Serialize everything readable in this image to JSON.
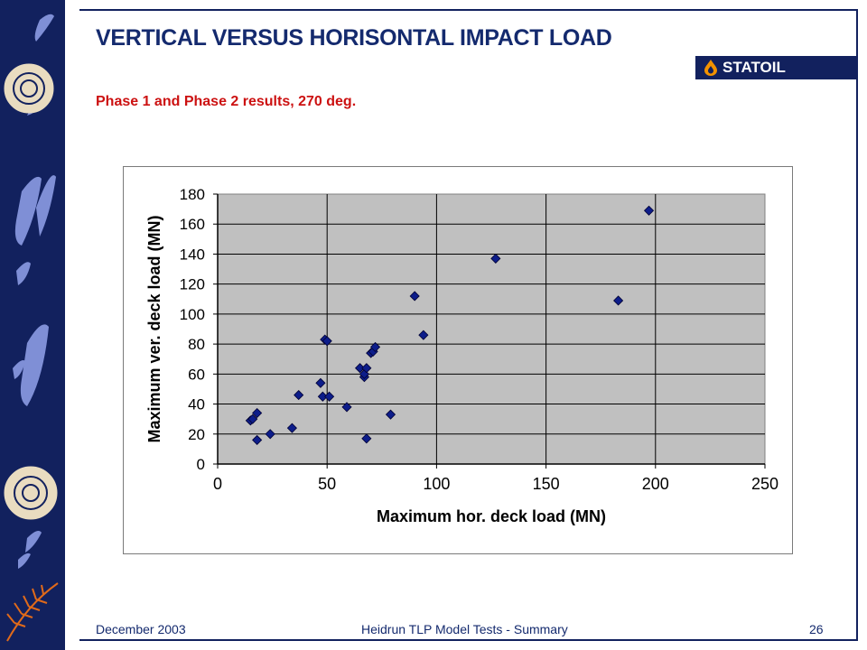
{
  "slide": {
    "title": "VERTICAL VERSUS HORISONTAL IMPACT LOAD",
    "subtitle": "Phase 1 and Phase 2 results, 270 deg.",
    "logo_text": "STATOIL",
    "footer_left": "December 2003",
    "footer_center": "Heidrun TLP Model Tests - Summary",
    "page_number": "26"
  },
  "colors": {
    "band": "#12215e",
    "title": "#142a6e",
    "subtitle": "#cc1111",
    "plot_area": "#c0c0c0",
    "marker": "#0d1d8a",
    "logo_drop": "#f39200"
  },
  "chart_data": {
    "type": "scatter",
    "xlabel": "Maximum hor. deck load (MN)",
    "ylabel": "Maximum ver. deck load  (MN)",
    "xlim": [
      0,
      250
    ],
    "ylim": [
      0,
      180
    ],
    "x_ticks": [
      0,
      50,
      100,
      150,
      200,
      250
    ],
    "y_ticks": [
      0,
      20,
      40,
      60,
      80,
      100,
      120,
      140,
      160,
      180
    ],
    "grid": "major gridlines on both axes",
    "points": [
      [
        15,
        29
      ],
      [
        16,
        30
      ],
      [
        18,
        34
      ],
      [
        18,
        16
      ],
      [
        24,
        20
      ],
      [
        34,
        24
      ],
      [
        37,
        46
      ],
      [
        47,
        54
      ],
      [
        48,
        45
      ],
      [
        49,
        83
      ],
      [
        50,
        82
      ],
      [
        51,
        45
      ],
      [
        59,
        38
      ],
      [
        65,
        64
      ],
      [
        67,
        58
      ],
      [
        67,
        60
      ],
      [
        68,
        64
      ],
      [
        68,
        17
      ],
      [
        70,
        74
      ],
      [
        71,
        75
      ],
      [
        72,
        78
      ],
      [
        79,
        33
      ],
      [
        90,
        112
      ],
      [
        94,
        86
      ],
      [
        127,
        137
      ],
      [
        183,
        109
      ],
      [
        197,
        169
      ]
    ]
  }
}
